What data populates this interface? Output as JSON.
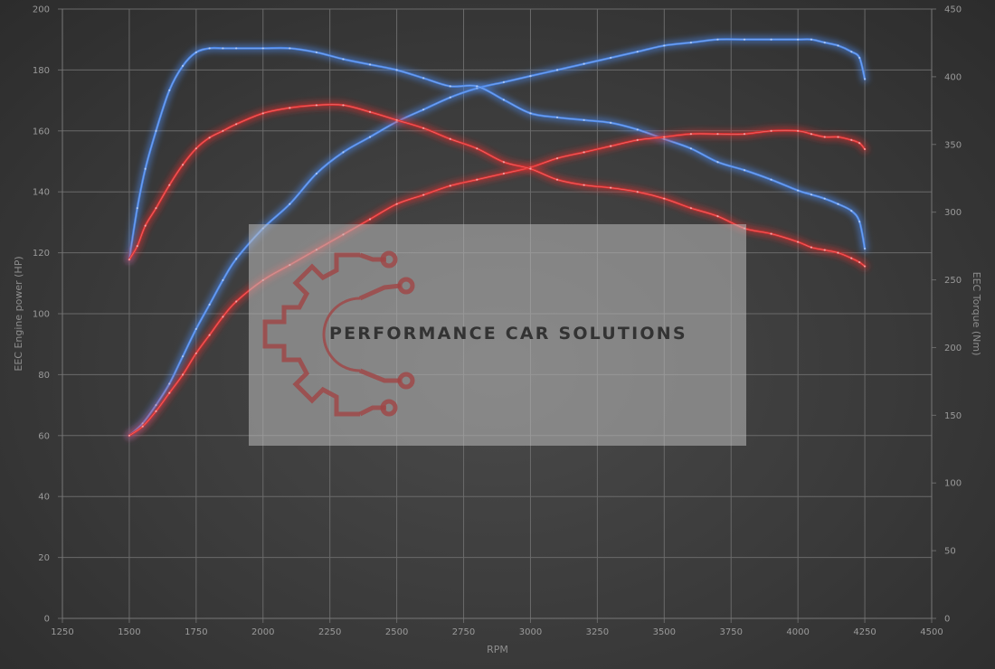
{
  "chart_data": {
    "type": "line",
    "xlabel": "RPM",
    "ylabel": "EEC Engine power (HP)",
    "y2label": "EEC Torque (Nm)",
    "xlim": [
      1250,
      4500
    ],
    "ylim": [
      0,
      200
    ],
    "y2lim": [
      0,
      450
    ],
    "x_ticks": [
      1250,
      1500,
      1750,
      2000,
      2250,
      2500,
      2750,
      3000,
      3250,
      3500,
      3750,
      4000,
      4250,
      4500
    ],
    "y_ticks": [
      0,
      20,
      40,
      60,
      80,
      100,
      120,
      140,
      160,
      180,
      200
    ],
    "y2_ticks": [
      0,
      50,
      100,
      150,
      200,
      250,
      300,
      350,
      400,
      450
    ],
    "grid": true,
    "watermark": "PERFORMANCE CAR SOLUTIONS",
    "series": [
      {
        "color": "#4a86e8",
        "axis": "left",
        "x": [
          1500,
          1550,
          1600,
          1650,
          1700,
          1750,
          1800,
          1850,
          1900,
          2000,
          2100,
          2200,
          2300,
          2400,
          2500,
          2600,
          2700,
          2800,
          2900,
          3000,
          3100,
          3200,
          3300,
          3400,
          3500,
          3600,
          3700,
          3800,
          3900,
          4000,
          4050,
          4100,
          4150,
          4200,
          4230,
          4250
        ],
        "y": [
          60,
          64,
          70,
          77,
          86,
          95,
          103,
          111,
          118,
          128,
          136,
          146,
          153,
          158,
          163,
          167,
          171,
          174,
          176,
          178,
          180,
          182,
          184,
          186,
          188,
          189,
          190,
          190,
          190,
          190,
          190,
          189,
          188,
          186,
          184,
          177
        ]
      },
      {
        "color": "#4a86e8",
        "axis": "right",
        "x": [
          1500,
          1530,
          1560,
          1600,
          1650,
          1700,
          1750,
          1800,
          1850,
          1900,
          2000,
          2100,
          2200,
          2300,
          2400,
          2500,
          2600,
          2700,
          2800,
          2900,
          3000,
          3100,
          3200,
          3300,
          3400,
          3500,
          3600,
          3700,
          3800,
          3900,
          4000,
          4050,
          4100,
          4150,
          4200,
          4230,
          4250
        ],
        "y": [
          265,
          303,
          332,
          360,
          390,
          408,
          418,
          421,
          421,
          421,
          421,
          421,
          418,
          413,
          409,
          405,
          399,
          393,
          393,
          383,
          373,
          370,
          368,
          366,
          361,
          354,
          347,
          337,
          331,
          324,
          316,
          313,
          310,
          306,
          301,
          293,
          273
        ]
      },
      {
        "color": "#e03030",
        "axis": "left",
        "x": [
          1500,
          1550,
          1600,
          1650,
          1700,
          1750,
          1800,
          1850,
          1900,
          2000,
          2100,
          2200,
          2300,
          2400,
          2500,
          2600,
          2700,
          2800,
          2900,
          3000,
          3100,
          3200,
          3300,
          3400,
          3500,
          3600,
          3700,
          3800,
          3900,
          4000,
          4050,
          4100,
          4150,
          4200,
          4230,
          4250
        ],
        "y": [
          60,
          63,
          68,
          74,
          80,
          87,
          93,
          99,
          104,
          111,
          116,
          121,
          126,
          131,
          136,
          139,
          142,
          144,
          146,
          148,
          151,
          153,
          155,
          157,
          158,
          159,
          159,
          159,
          160,
          160,
          159,
          158,
          158,
          157,
          156,
          154
        ]
      },
      {
        "color": "#e03030",
        "axis": "right",
        "x": [
          1500,
          1530,
          1560,
          1600,
          1650,
          1700,
          1750,
          1800,
          1850,
          1900,
          2000,
          2100,
          2200,
          2300,
          2400,
          2500,
          2600,
          2700,
          2800,
          2900,
          3000,
          3100,
          3200,
          3300,
          3400,
          3500,
          3600,
          3700,
          3800,
          3900,
          4000,
          4050,
          4100,
          4150,
          4200,
          4230,
          4250
        ],
        "y": [
          265,
          275,
          290,
          303,
          320,
          335,
          347,
          355,
          360,
          365,
          373,
          377,
          379,
          379,
          374,
          368,
          362,
          354,
          347,
          337,
          332,
          324,
          320,
          318,
          315,
          310,
          303,
          297,
          288,
          284,
          278,
          274,
          272,
          270,
          266,
          263,
          260
        ]
      }
    ]
  }
}
